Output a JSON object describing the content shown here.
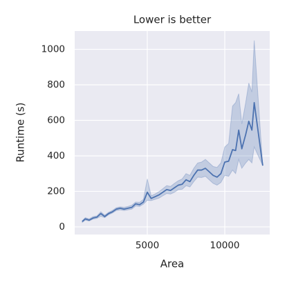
{
  "chart_data": {
    "type": "line",
    "title": "Lower is better",
    "x_label": "Area",
    "y_label": "Runtime (s)",
    "x": [
      800,
      1000,
      1250,
      1500,
      1750,
      2000,
      2250,
      2500,
      2750,
      3000,
      3250,
      3500,
      3750,
      4000,
      4250,
      4500,
      4750,
      5000,
      5250,
      5500,
      5750,
      6000,
      6250,
      6500,
      6750,
      7000,
      7250,
      7500,
      7750,
      8000,
      8250,
      8500,
      8750,
      9000,
      9250,
      9500,
      9750,
      10000,
      10250,
      10500,
      10700,
      10900,
      11100,
      11350,
      11550,
      11750,
      11900,
      12450
    ],
    "series": [
      {
        "color": "#4c72b0",
        "values": [
          30,
          45,
          38,
          50,
          55,
          75,
          58,
          75,
          85,
          100,
          105,
          100,
          105,
          110,
          130,
          125,
          140,
          195,
          160,
          170,
          180,
          195,
          210,
          205,
          220,
          235,
          240,
          265,
          255,
          290,
          320,
          320,
          330,
          310,
          290,
          280,
          300,
          365,
          370,
          435,
          430,
          545,
          440,
          520,
          595,
          545,
          700,
          345
        ],
        "lower": [
          25,
          38,
          33,
          44,
          48,
          60,
          52,
          68,
          78,
          92,
          96,
          92,
          96,
          100,
          118,
          115,
          128,
          150,
          148,
          155,
          162,
          175,
          188,
          185,
          195,
          210,
          212,
          232,
          225,
          255,
          280,
          278,
          285,
          265,
          245,
          235,
          250,
          290,
          285,
          320,
          300,
          380,
          330,
          360,
          380,
          360,
          450,
          345
        ],
        "upper": [
          35,
          52,
          45,
          58,
          62,
          85,
          66,
          82,
          93,
          108,
          113,
          110,
          115,
          122,
          140,
          138,
          155,
          270,
          175,
          185,
          198,
          215,
          232,
          228,
          245,
          260,
          270,
          300,
          290,
          330,
          360,
          365,
          380,
          360,
          340,
          335,
          360,
          450,
          470,
          680,
          700,
          750,
          580,
          700,
          810,
          760,
          1050,
          345
        ]
      }
    ],
    "xlim": [
      313,
      12900
    ],
    "xticks": [
      5000,
      10000
    ],
    "ylim": [
      -43,
      1103
    ],
    "yticks": [
      0,
      200,
      400,
      600,
      800,
      1000
    ],
    "grid": true
  }
}
